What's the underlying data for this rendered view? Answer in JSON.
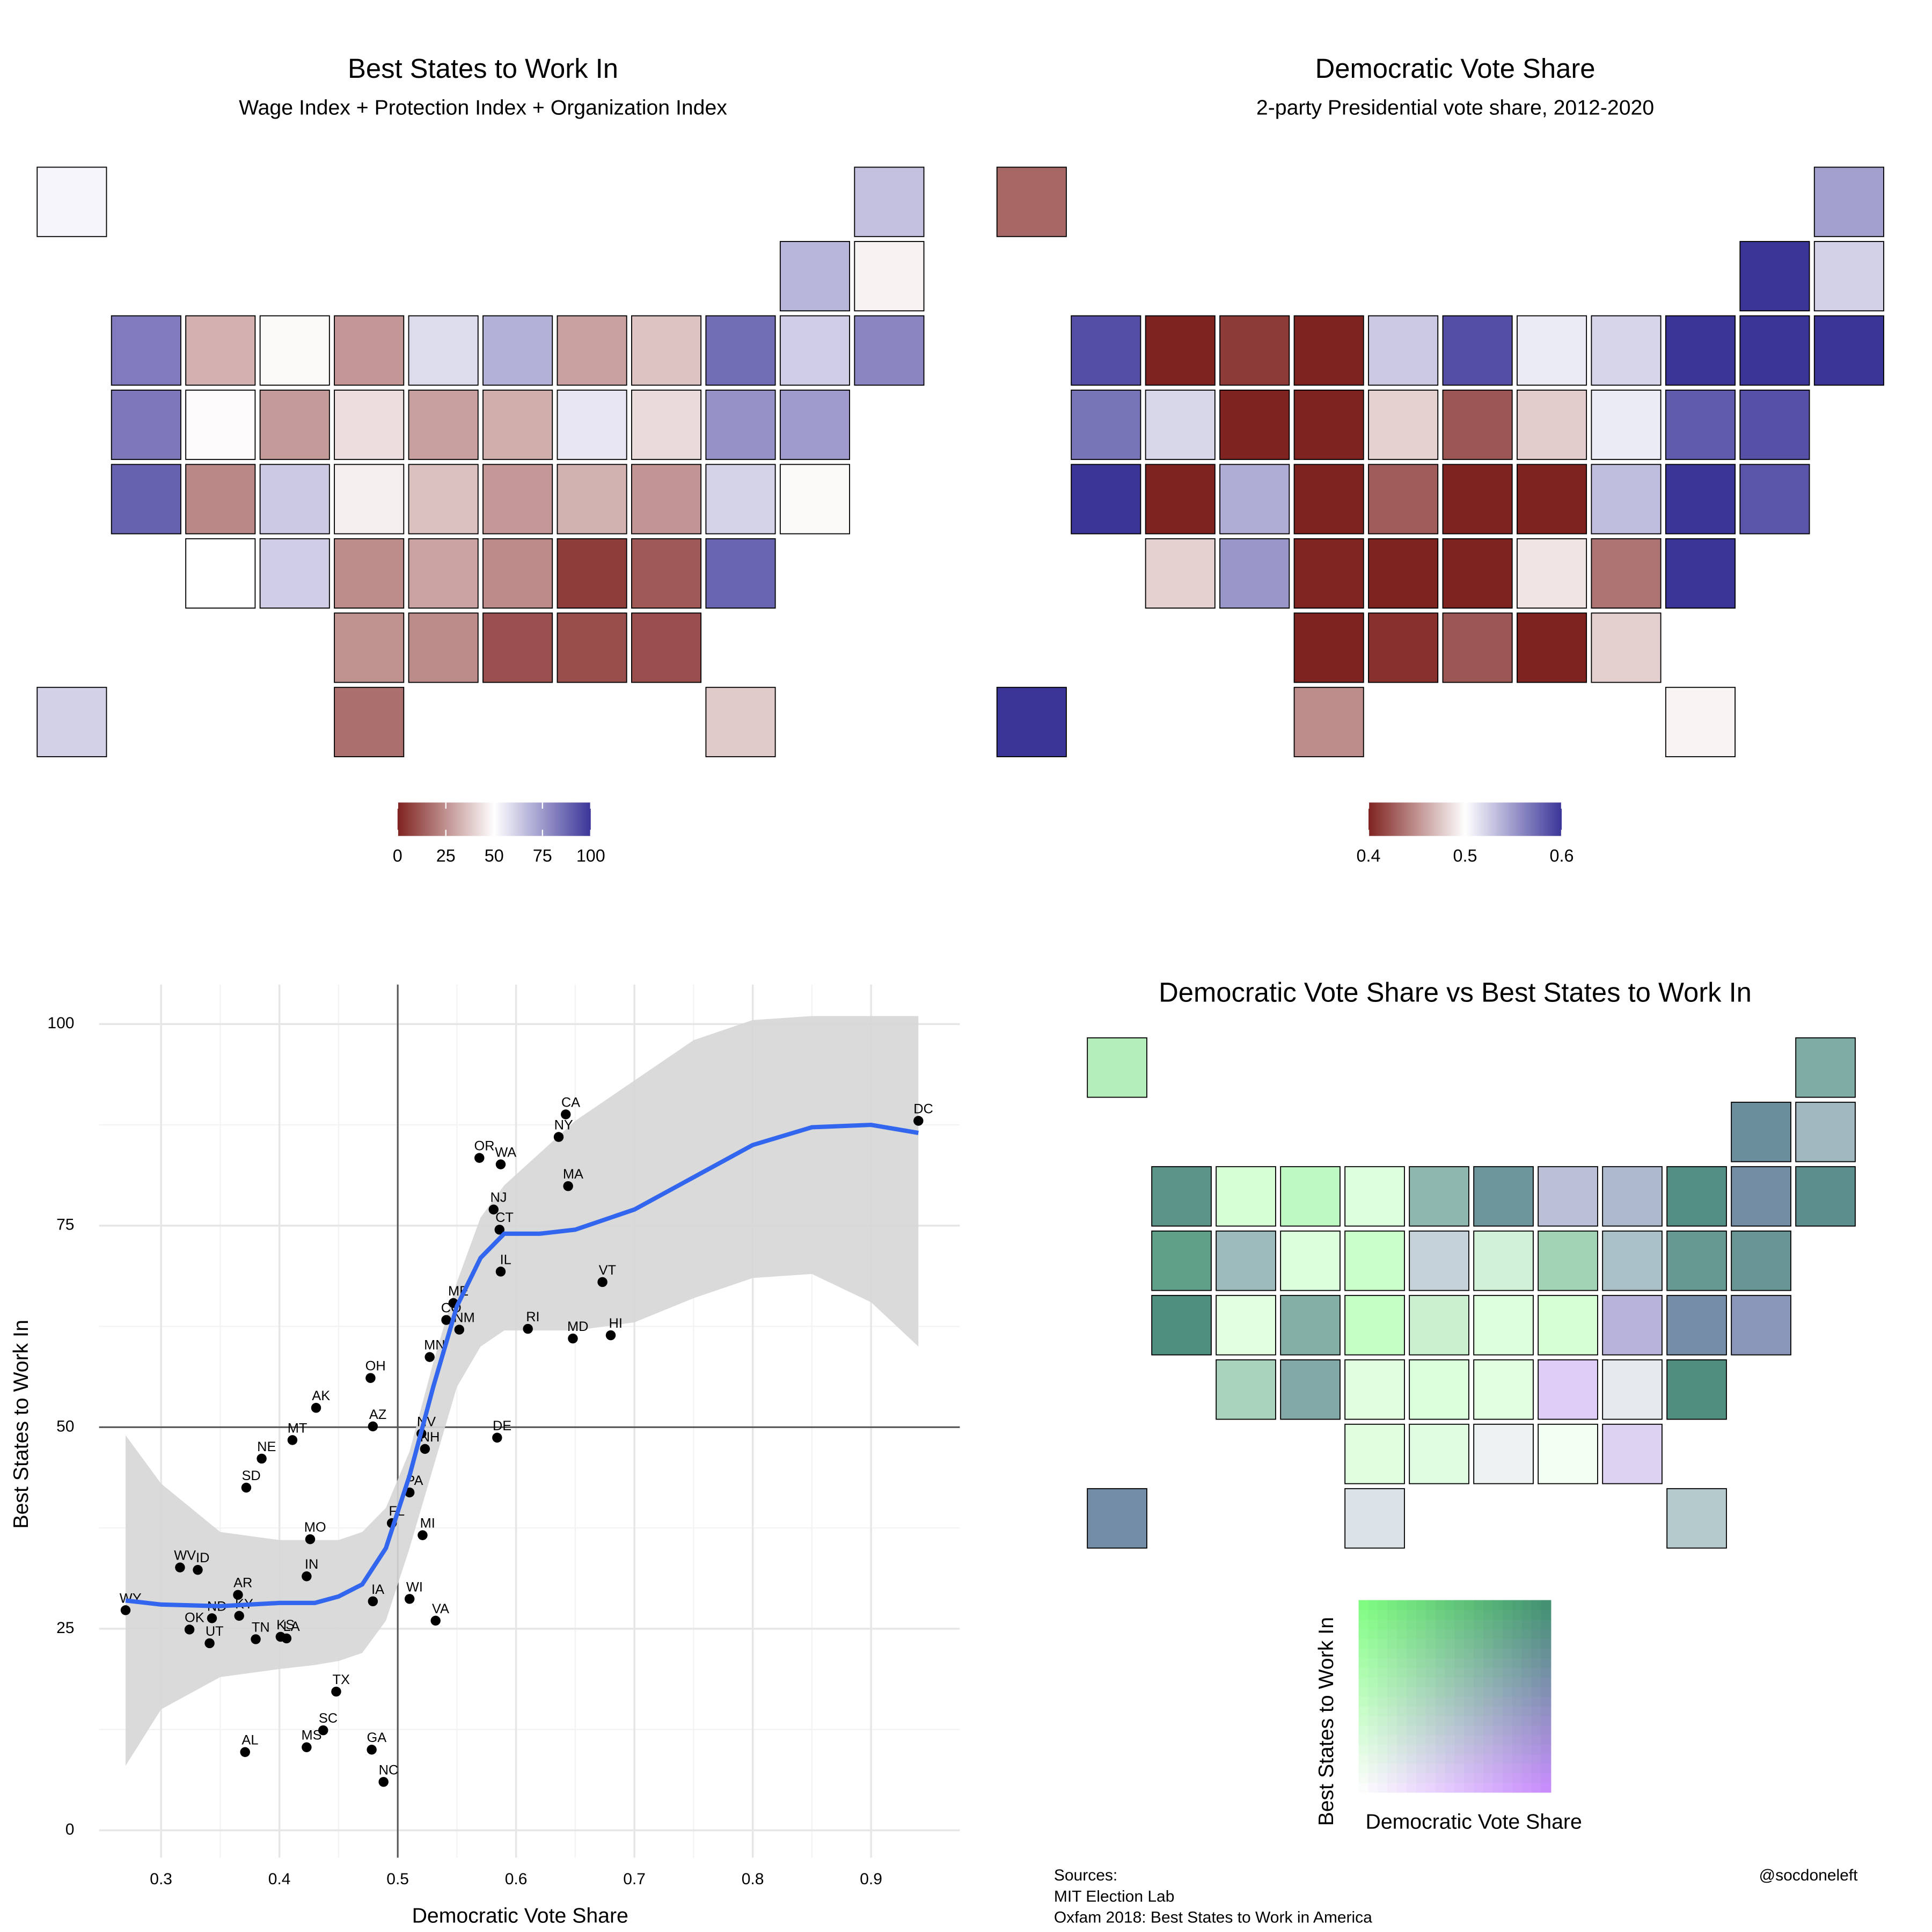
{
  "chart_data": [
    {
      "type": "choropleth",
      "title": "Best States to Work In",
      "subtitle": "Wage Index + Protection Index + Organization Index",
      "colors": [
        "#7f2320",
        "#ffffff",
        "#3b3598"
      ],
      "lim": [
        0,
        100
      ],
      "ticks": [
        0,
        25,
        50,
        75,
        100
      ]
    },
    {
      "type": "choropleth",
      "title": "Democratic Vote Share",
      "subtitle": "2-party Presidential vote share, 2012-2020",
      "colors": [
        "#7f2320",
        "#ffffff",
        "#3b3598"
      ],
      "lim": [
        0.4,
        0.6
      ],
      "ticks": [
        0.4,
        0.5,
        0.6
      ]
    },
    {
      "type": "scatter",
      "xlabel": "Democratic Vote Share",
      "ylabel": "Best States to Work In",
      "labels": [
        "DC",
        "CA",
        "NY",
        "OR",
        "WA",
        "MA",
        "NJ",
        "CT",
        "IL",
        "VT",
        "ME",
        "CO",
        "NM",
        "RI",
        "MD",
        "HI",
        "MN",
        "OH",
        "AK",
        "AZ",
        "DE",
        "NV",
        "NH",
        "MT",
        "NE",
        "SD",
        "PA",
        "FL",
        "MI",
        "MO",
        "WV",
        "ID",
        "IN",
        "AR",
        "WY",
        "IA",
        "WI",
        "ND",
        "OK",
        "KY",
        "KS",
        "TN",
        "LA",
        "UT",
        "VA",
        "TX",
        "SC",
        "MS",
        "GA",
        "AL",
        "NC"
      ],
      "x": [
        0.94,
        0.642,
        0.636,
        0.569,
        0.587,
        0.644,
        0.581,
        0.586,
        0.587,
        0.673,
        0.547,
        0.541,
        0.552,
        0.61,
        0.648,
        0.68,
        0.527,
        0.477,
        0.431,
        0.479,
        0.584,
        0.52,
        0.523,
        0.411,
        0.385,
        0.372,
        0.51,
        0.495,
        0.521,
        0.426,
        0.316,
        0.331,
        0.423,
        0.365,
        0.27,
        0.479,
        0.51,
        0.343,
        0.324,
        0.366,
        0.401,
        0.38,
        0.406,
        0.341,
        0.532,
        0.448,
        0.437,
        0.423,
        0.478,
        0.371,
        0.488
      ],
      "y": [
        88.0,
        88.8,
        86.0,
        83.4,
        82.6,
        79.9,
        77.0,
        74.5,
        69.3,
        68.0,
        65.4,
        63.3,
        62.1,
        62.2,
        61.0,
        61.4,
        58.7,
        56.1,
        52.4,
        50.1,
        48.7,
        49.2,
        47.3,
        48.4,
        46.1,
        42.5,
        41.9,
        38.1,
        36.6,
        36.1,
        32.6,
        32.3,
        31.5,
        29.2,
        27.3,
        28.4,
        28.7,
        26.3,
        24.9,
        26.6,
        24.0,
        23.7,
        23.8,
        23.2,
        26.0,
        17.2,
        12.4,
        10.3,
        10.0,
        9.7,
        6.0
      ],
      "xlim": [
        0.2476,
        0.975
      ],
      "ylim": [
        -3.4,
        104.9
      ],
      "xticks": [
        0.3,
        0.4,
        0.5,
        0.6,
        0.7,
        0.8,
        0.9
      ],
      "yticks": [
        0,
        25,
        50,
        75,
        100
      ],
      "grid": true,
      "vline": 0.5,
      "hline": 50,
      "smooth": {
        "color": "#3366ee",
        "ribbon_color": "#d6d6d6",
        "x": [
          0.27,
          0.3,
          0.35,
          0.4,
          0.43,
          0.45,
          0.47,
          0.49,
          0.51,
          0.53,
          0.55,
          0.57,
          0.59,
          0.62,
          0.65,
          0.7,
          0.75,
          0.8,
          0.85,
          0.9,
          0.94
        ],
        "y": [
          28.5,
          28,
          27.8,
          28.2,
          28.2,
          29,
          30.5,
          35,
          44,
          55,
          65,
          71,
          74,
          74,
          74.5,
          77,
          81,
          85,
          87.2,
          87.5,
          86.5
        ],
        "upper": [
          49,
          43,
          37,
          36,
          36,
          36,
          37,
          40,
          47,
          58,
          68,
          76,
          80,
          84,
          88,
          93,
          98,
          100.5,
          101,
          101,
          101
        ],
        "lower": [
          8,
          15,
          19,
          20,
          20.5,
          21,
          22,
          26,
          35,
          45,
          55,
          60,
          62,
          62,
          62,
          63,
          66,
          68.5,
          69,
          65.5,
          60
        ]
      }
    },
    {
      "type": "bivariate_map",
      "title": "Democratic Vote Share vs Best States to Work In",
      "xlabel": "Democratic Vote Share",
      "ylabel": "Best States to Work In",
      "corner_colors": [
        "#ffffff",
        "#c98bff",
        "#80ff80",
        "#3f8f6f"
      ]
    }
  ],
  "sources": [
    "Sources:",
    "MIT Election Lab",
    "Oxfam 2018: Best States to Work in America"
  ],
  "credit": "@socdoneleft"
}
